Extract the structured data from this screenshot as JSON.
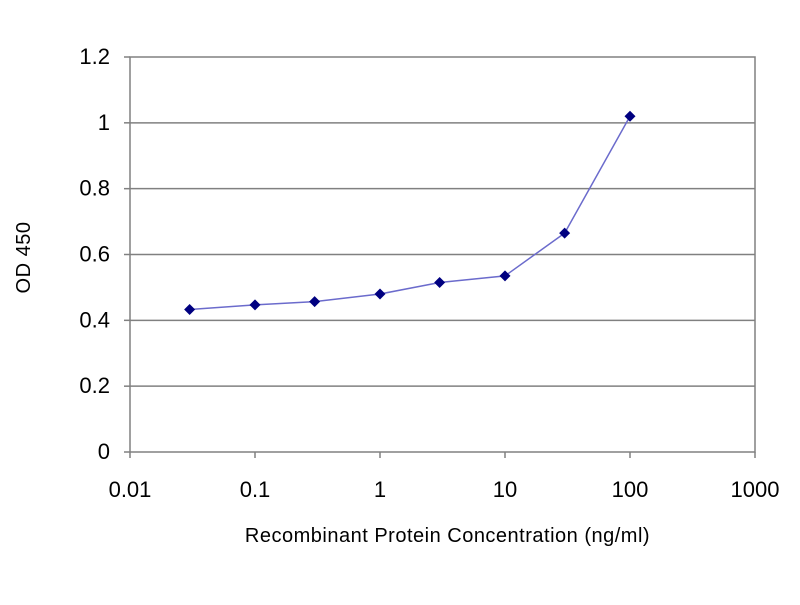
{
  "chart_data": {
    "type": "line",
    "title": "",
    "xlabel": "Recombinant Protein Concentration (ng/ml)",
    "ylabel": "OD 450",
    "x_scale": "log",
    "xlim": [
      0.01,
      1000
    ],
    "ylim": [
      0,
      1.2
    ],
    "x_ticks": [
      0.01,
      0.1,
      1,
      10,
      100,
      1000
    ],
    "x_tick_labels": [
      "0.01",
      "0.1",
      "1",
      "10",
      "100",
      "1000"
    ],
    "y_ticks": [
      0,
      0.2,
      0.4,
      0.6,
      0.8,
      1,
      1.2
    ],
    "y_tick_labels": [
      "0",
      "0.2",
      "0.4",
      "0.6",
      "0.8",
      "1",
      "1.2"
    ],
    "grid": "horizontal",
    "legend": "none",
    "series": [
      {
        "x": [
          0.03,
          0.1,
          0.3,
          1,
          3,
          10,
          30,
          100
        ],
        "y": [
          0.433,
          0.447,
          0.457,
          0.48,
          0.515,
          0.535,
          0.665,
          1.02
        ],
        "color": "#6b6bcc",
        "marker_color": "#000080",
        "marker": "diamond"
      }
    ]
  }
}
